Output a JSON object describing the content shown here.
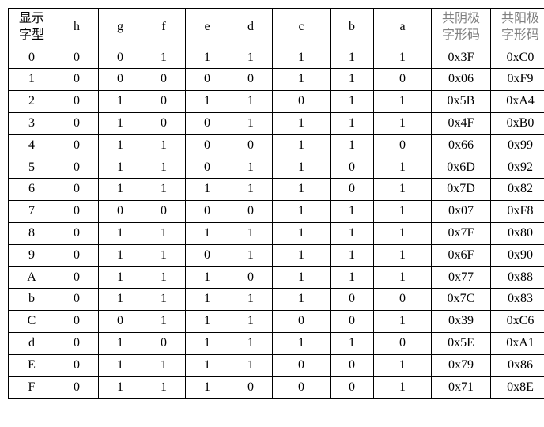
{
  "table": {
    "headers": {
      "display": "显示\n字型",
      "h": "h",
      "g": "g",
      "f": "f",
      "e": "e",
      "d": "d",
      "c": "c",
      "b": "b",
      "a": "a",
      "cathode": "共阴极\n字形码",
      "anode": "共阳极\n字形码"
    },
    "header_colors": {
      "display_color": "#000000",
      "bit_color": "#000000",
      "code_color": "#808080"
    },
    "column_widths": {
      "display": 50,
      "bit": 46,
      "bit_wide_c": 64,
      "bit_wide_a": 64,
      "code": 66
    },
    "border_color": "#000000",
    "background_color": "#ffffff",
    "font_size": 16,
    "rows": [
      {
        "char": "0",
        "h": "0",
        "g": "0",
        "f": "1",
        "e": "1",
        "d": "1",
        "c": "1",
        "b": "1",
        "a": "1",
        "cathode": "0x3F",
        "anode": "0xC0"
      },
      {
        "char": "1",
        "h": "0",
        "g": "0",
        "f": "0",
        "e": "0",
        "d": "0",
        "c": "1",
        "b": "1",
        "a": "0",
        "cathode": "0x06",
        "anode": "0xF9"
      },
      {
        "char": "2",
        "h": "0",
        "g": "1",
        "f": "0",
        "e": "1",
        "d": "1",
        "c": "0",
        "b": "1",
        "a": "1",
        "cathode": "0x5B",
        "anode": "0xA4"
      },
      {
        "char": "3",
        "h": "0",
        "g": "1",
        "f": "0",
        "e": "0",
        "d": "1",
        "c": "1",
        "b": "1",
        "a": "1",
        "cathode": "0x4F",
        "anode": "0xB0"
      },
      {
        "char": "4",
        "h": "0",
        "g": "1",
        "f": "1",
        "e": "0",
        "d": "0",
        "c": "1",
        "b": "1",
        "a": "0",
        "cathode": "0x66",
        "anode": "0x99"
      },
      {
        "char": "5",
        "h": "0",
        "g": "1",
        "f": "1",
        "e": "0",
        "d": "1",
        "c": "1",
        "b": "0",
        "a": "1",
        "cathode": "0x6D",
        "anode": "0x92"
      },
      {
        "char": "6",
        "h": "0",
        "g": "1",
        "f": "1",
        "e": "1",
        "d": "1",
        "c": "1",
        "b": "0",
        "a": "1",
        "cathode": "0x7D",
        "anode": "0x82"
      },
      {
        "char": "7",
        "h": "0",
        "g": "0",
        "f": "0",
        "e": "0",
        "d": "0",
        "c": "1",
        "b": "1",
        "a": "1",
        "cathode": "0x07",
        "anode": "0xF8"
      },
      {
        "char": "8",
        "h": "0",
        "g": "1",
        "f": "1",
        "e": "1",
        "d": "1",
        "c": "1",
        "b": "1",
        "a": "1",
        "cathode": "0x7F",
        "anode": "0x80"
      },
      {
        "char": "9",
        "h": "0",
        "g": "1",
        "f": "1",
        "e": "0",
        "d": "1",
        "c": "1",
        "b": "1",
        "a": "1",
        "cathode": "0x6F",
        "anode": "0x90"
      },
      {
        "char": "A",
        "h": "0",
        "g": "1",
        "f": "1",
        "e": "1",
        "d": "0",
        "c": "1",
        "b": "1",
        "a": "1",
        "cathode": "0x77",
        "anode": "0x88"
      },
      {
        "char": "b",
        "h": "0",
        "g": "1",
        "f": "1",
        "e": "1",
        "d": "1",
        "c": "1",
        "b": "0",
        "a": "0",
        "cathode": "0x7C",
        "anode": "0x83"
      },
      {
        "char": "C",
        "h": "0",
        "g": "0",
        "f": "1",
        "e": "1",
        "d": "1",
        "c": "0",
        "b": "0",
        "a": "1",
        "cathode": "0x39",
        "anode": "0xC6"
      },
      {
        "char": "d",
        "h": "0",
        "g": "1",
        "f": "0",
        "e": "1",
        "d": "1",
        "c": "1",
        "b": "1",
        "a": "0",
        "cathode": "0x5E",
        "anode": "0xA1"
      },
      {
        "char": "E",
        "h": "0",
        "g": "1",
        "f": "1",
        "e": "1",
        "d": "1",
        "c": "0",
        "b": "0",
        "a": "1",
        "cathode": "0x79",
        "anode": "0x86"
      },
      {
        "char": "F",
        "h": "0",
        "g": "1",
        "f": "1",
        "e": "1",
        "d": "0",
        "c": "0",
        "b": "0",
        "a": "1",
        "cathode": "0x71",
        "anode": "0x8E"
      }
    ]
  }
}
